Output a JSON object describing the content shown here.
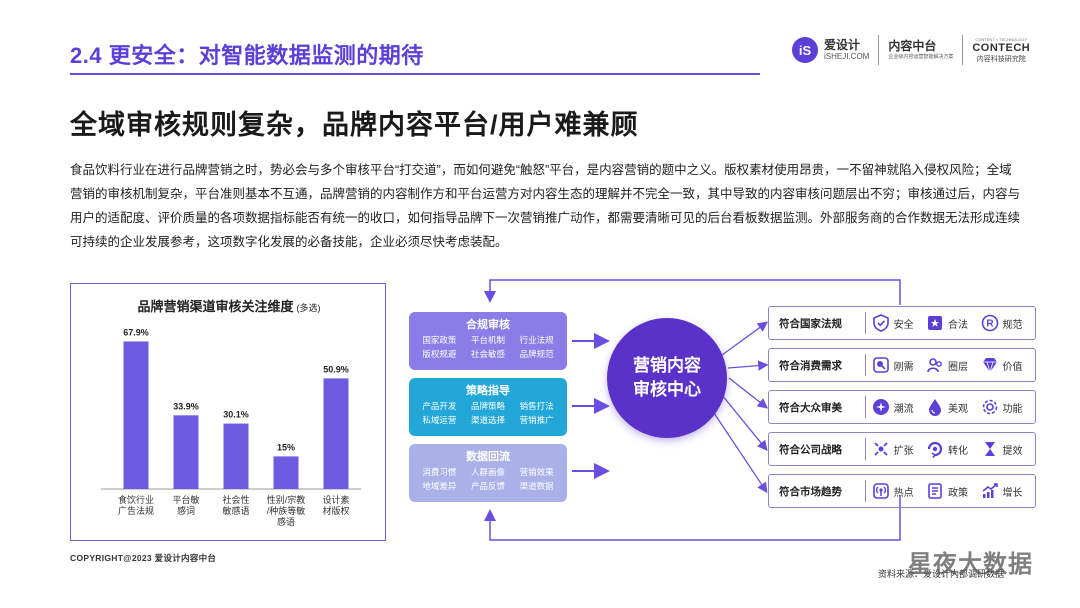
{
  "header": {
    "section_title": "2.4 更安全：对智能数据监测的期待",
    "brand_logo_mark": "iS",
    "brand1_name": "爱设计",
    "brand1_sub": "iSHEJI.COM",
    "brand2_name": "内容中台",
    "brand2_sub": "企业级内容运营智能解决方案",
    "brand3_top": "CONTENT × TECHNOLOGY",
    "brand3_name": "CONTECH",
    "brand3_sub": "内容科技研究院"
  },
  "headline": "全域审核规则复杂，品牌内容平台/用户难兼顾",
  "body": "食品饮料行业在进行品牌营销之时，势必会与多个审核平台“打交道”，而如何避免“触怒”平台，是内容营销的题中之义。版权素材使用昂贵，一不留神就陷入侵权风险；全域营销的审核机制复杂，平台准则基本不互通，品牌营销的内容制作方和平台运营方对内容生态的理解并不完全一致，其中导致的内容审核问题层出不穷；审核通过后，内容与用户的适配度、评价质量的各项数据指标能否有统一的收口，如何指导品牌下一次营销推广动作，都需要清晰可见的后台看板数据监测。外部服务商的合作数据无法形成连续可持续的企业发展参考，这项数字化发展的必备技能，企业必须尽快考虑装配。",
  "chart_data": {
    "type": "bar",
    "title": "品牌营销渠道审核关注维度",
    "title_note": "(多选)",
    "categories": [
      [
        "食饮行业",
        "广告法规"
      ],
      [
        "平台敏",
        "感词"
      ],
      [
        "社会性",
        "敏感语"
      ],
      [
        "性别/宗教",
        "/种族等敏",
        "感语"
      ],
      [
        "设计素",
        "材版权"
      ]
    ],
    "values": [
      67.9,
      33.9,
      30.1,
      15,
      50.9
    ],
    "value_labels": [
      "67.9%",
      "33.9%",
      "30.1%",
      "15%",
      "50.9%"
    ],
    "ylim": [
      0,
      75
    ],
    "bar_color": "#6d5ce0",
    "grid": false
  },
  "diagram": {
    "categories": [
      {
        "title": "合规审核",
        "items": [
          "国家政策",
          "平台机制",
          "行业法规",
          "版权规避",
          "社会敏感",
          "品牌规范"
        ],
        "color": "#8a7de8"
      },
      {
        "title": "策略指导",
        "items": [
          "产品开发",
          "品牌策略",
          "销售打法",
          "私域运营",
          "渠道选择",
          "营销推广"
        ],
        "color": "#22a7d8"
      },
      {
        "title": "数据回流",
        "items": [
          "消费习惯",
          "人群画像",
          "营销效果",
          "地域差异",
          "产品反馈",
          "渠道数据"
        ],
        "color": "#a9b1e8"
      }
    ],
    "center": [
      "营销内容",
      "审核中心"
    ],
    "requirements": [
      {
        "label": "符合国家法规",
        "items": [
          {
            "icon": "shield-icon",
            "text": "安全"
          },
          {
            "icon": "flag-icon",
            "text": "合法"
          },
          {
            "icon": "registered-icon",
            "text": "规范"
          }
        ]
      },
      {
        "label": "符合消费需求",
        "items": [
          {
            "icon": "need-icon",
            "text": "刚需"
          },
          {
            "icon": "people-icon",
            "text": "圈层"
          },
          {
            "icon": "diamond-icon",
            "text": "价值"
          }
        ]
      },
      {
        "label": "符合大众审美",
        "items": [
          {
            "icon": "sparkle-icon",
            "text": "潮流"
          },
          {
            "icon": "drop-icon",
            "text": "美观"
          },
          {
            "icon": "gear-icon",
            "text": "功能"
          }
        ]
      },
      {
        "label": "符合公司战略",
        "items": [
          {
            "icon": "expand-icon",
            "text": "扩张"
          },
          {
            "icon": "cycle-icon",
            "text": "转化"
          },
          {
            "icon": "hourglass-icon",
            "text": "提效"
          }
        ]
      },
      {
        "label": "符合市场趋势",
        "items": [
          {
            "icon": "broadcast-icon",
            "text": "热点"
          },
          {
            "icon": "document-icon",
            "text": "政策"
          },
          {
            "icon": "growth-icon",
            "text": "增长"
          }
        ]
      }
    ]
  },
  "footer": {
    "copyright": "COPYRIGHT@2023  爱设计内容中台",
    "source": "资料来源：爱设计内部调研数据",
    "watermark": "星夜大数据"
  },
  "colors": {
    "accent": "#5b3fd6",
    "center": "#5a31c9",
    "border": "#8d85c9"
  }
}
